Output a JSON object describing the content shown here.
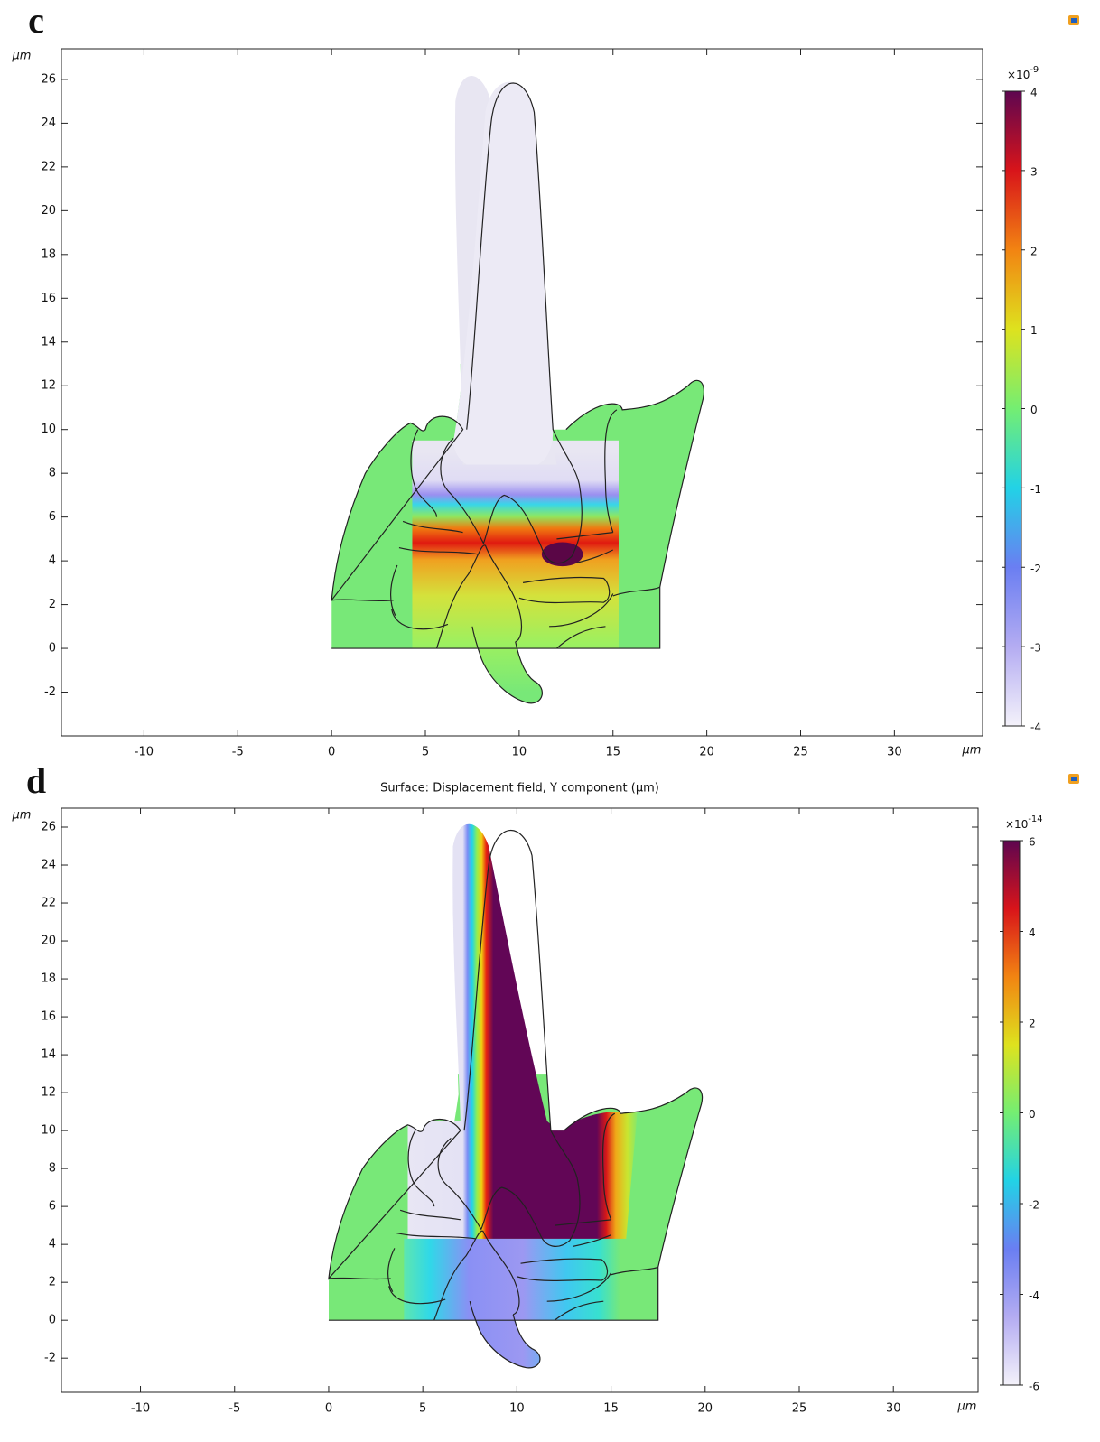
{
  "chart_data": [
    {
      "type": "surface",
      "panel_label": "c",
      "x_unit": "μm",
      "y_unit": "μm",
      "xlim": [
        -14.4,
        34.7
      ],
      "ylim": [
        -4,
        27.4
      ],
      "xticks": [
        -10,
        -5,
        0,
        5,
        10,
        15,
        20,
        25,
        30
      ],
      "yticks": [
        -2,
        0,
        2,
        4,
        6,
        8,
        10,
        12,
        14,
        16,
        18,
        20,
        22,
        24,
        26
      ],
      "colorbar": {
        "lim": [
          -4,
          4
        ],
        "ticks": [
          -4,
          -3,
          -2,
          -1,
          0,
          1,
          2,
          3,
          4
        ],
        "scale_base": "×10",
        "scale_exponent": "-9",
        "colormap": [
          "#f4f2fa",
          "#b4acf2",
          "#6a7ef2",
          "#22d2e6",
          "#74ee72",
          "#dee21e",
          "#f28412",
          "#d8141a",
          "#5e0650"
        ]
      }
    },
    {
      "type": "surface",
      "panel_label": "d",
      "title": "Surface: Displacement field, Y component (μm)",
      "x_unit": "μm",
      "y_unit": "μm",
      "xlim": [
        -14.2,
        34.5
      ],
      "ylim": [
        -3.8,
        27
      ],
      "xticks": [
        -10,
        -5,
        0,
        5,
        10,
        15,
        20,
        25,
        30
      ],
      "yticks": [
        -2,
        0,
        2,
        4,
        6,
        8,
        10,
        12,
        14,
        16,
        18,
        20,
        22,
        24,
        26
      ],
      "colorbar": {
        "lim": [
          -6,
          6
        ],
        "ticks": [
          -6,
          -4,
          -2,
          0,
          2,
          4,
          6
        ],
        "scale_base": "×10",
        "scale_exponent": "-14",
        "colormap": [
          "#f4f2fa",
          "#b4acf2",
          "#6a7ef2",
          "#22d2e6",
          "#74ee72",
          "#dee21e",
          "#f28412",
          "#d8141a",
          "#5e0650"
        ]
      }
    }
  ]
}
